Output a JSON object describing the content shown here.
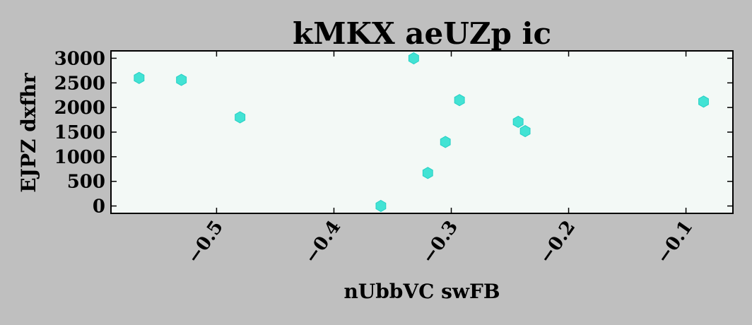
{
  "chart_data": {
    "type": "scatter",
    "title": "kMKX  aeUZp ic",
    "xlabel": "nUbbVC swFB",
    "ylabel": "EJPZ dxfhr",
    "xlim": [
      -0.59,
      -0.06
    ],
    "ylim": [
      -150,
      3150
    ],
    "x_ticks": [
      -0.5,
      -0.4,
      -0.3,
      -0.2,
      -0.1
    ],
    "x_tick_labels": [
      "−0.5",
      "−0.4",
      "−0.3",
      "−0.2",
      "−0.1"
    ],
    "y_ticks": [
      0,
      500,
      1000,
      1500,
      2000,
      2500,
      3000
    ],
    "y_tick_labels": [
      "0",
      "500",
      "1000",
      "1500",
      "2000",
      "2500",
      "3000"
    ],
    "grid": false,
    "series": [
      {
        "x": [
          -0.566,
          -0.53,
          -0.48,
          -0.36,
          -0.332,
          -0.32,
          -0.305,
          -0.293,
          -0.243,
          -0.237,
          -0.085
        ],
        "y": [
          2600,
          2560,
          1800,
          0,
          3000,
          670,
          1300,
          2150,
          1710,
          1520,
          2120
        ]
      }
    ],
    "marker": "hexagon",
    "colors": {
      "marker": "#2fe0d0",
      "plot_background": "#f3f9f6",
      "figure_background": "#bfbfbf",
      "axes": "#000000"
    }
  }
}
